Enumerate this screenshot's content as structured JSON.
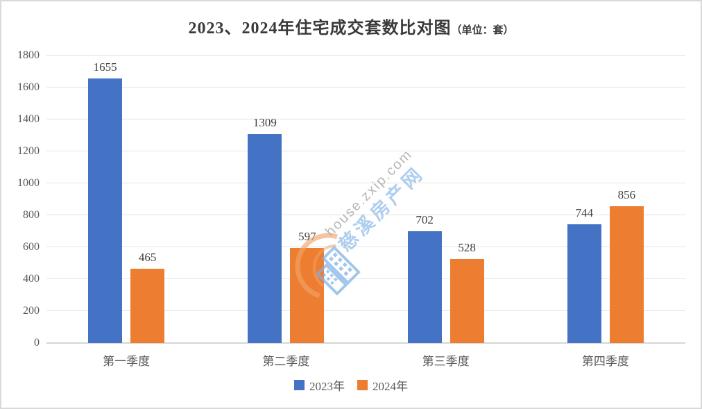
{
  "chart_data": {
    "type": "bar",
    "title": "2023、2024年住宅成交套数比对图",
    "title_unit": "（单位：套）",
    "categories": [
      "第一季度",
      "第二季度",
      "第三季度",
      "第四季度"
    ],
    "series": [
      {
        "name": "2023年",
        "color": "#4472C4",
        "values": [
          1655,
          1309,
          702,
          744
        ]
      },
      {
        "name": "2024年",
        "color": "#ED7D31",
        "values": [
          465,
          597,
          528,
          856
        ]
      }
    ],
    "ylim": [
      0,
      1800
    ],
    "ytick_step": 200,
    "grid": true,
    "legend_position": "bottom",
    "value_labels": true
  },
  "watermark": {
    "line1": "house.zxip.com",
    "line2": "慈溪房产网",
    "logo_orange": "#F2A469",
    "logo_blue": "#7FB2E5"
  },
  "colors": {
    "gridline": "#E2E2E2",
    "axis": "#D6D6D6",
    "tick_text": "#595959",
    "value_text": "#3F3F3F",
    "title_text": "#3A3A3A"
  }
}
